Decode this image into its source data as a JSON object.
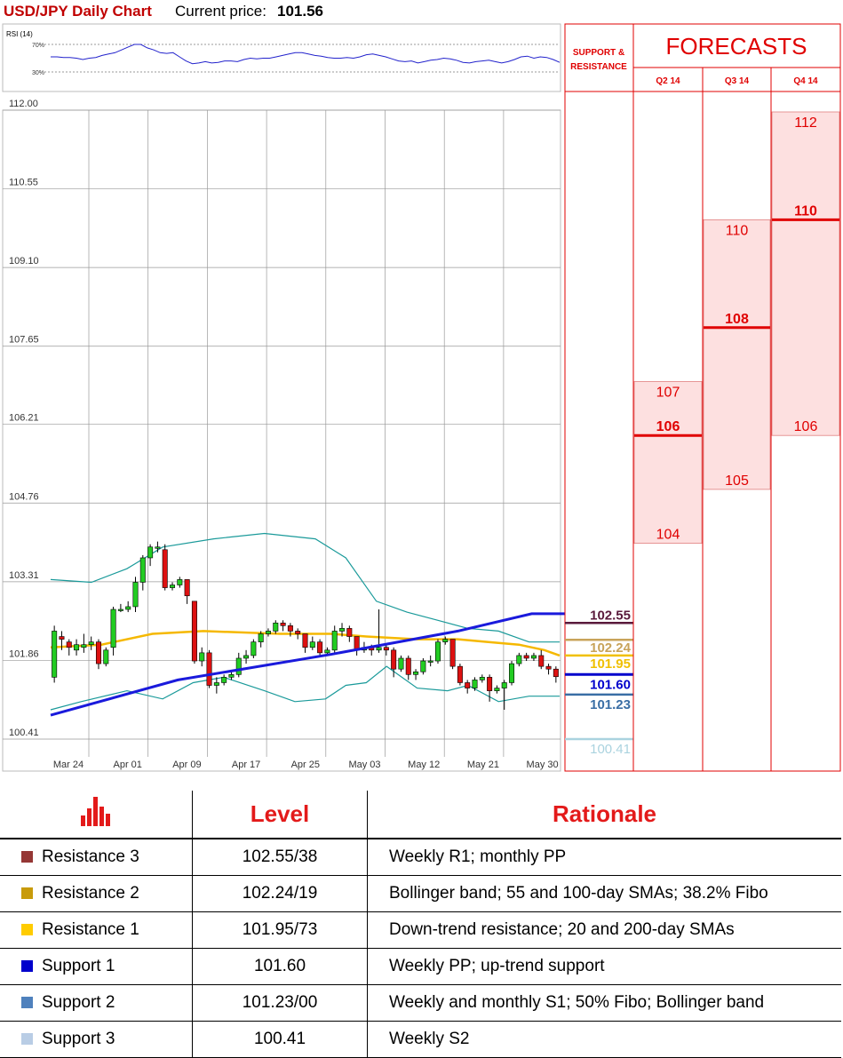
{
  "header": {
    "title": "USD/JPY Daily Chart",
    "price_label": "Current price:",
    "price_value": "101.56"
  },
  "rsi": {
    "label": "RSI (14)",
    "levels": [
      "70%",
      "30%"
    ],
    "values": [
      52,
      52,
      51,
      51,
      50,
      48,
      50,
      51,
      54,
      56,
      58,
      62,
      66,
      70,
      70,
      65,
      62,
      58,
      57,
      58,
      52,
      46,
      42,
      43,
      45,
      43,
      44,
      46,
      46,
      45,
      48,
      50,
      49,
      50,
      50,
      52,
      54,
      56,
      58,
      58,
      56,
      54,
      53,
      51,
      50,
      50,
      51,
      50,
      52,
      55,
      56,
      54,
      52,
      49,
      46,
      45,
      46,
      43,
      45,
      47,
      48,
      50,
      49,
      47,
      44,
      43,
      45,
      46,
      47,
      45,
      43,
      45,
      48,
      52,
      53,
      50,
      52,
      51,
      48,
      44
    ]
  },
  "chart_data": {
    "type": "candlestick",
    "title": "USD/JPY Daily Chart",
    "y_ticks": [
      "112.00",
      "110.55",
      "109.10",
      "107.65",
      "106.21",
      "104.76",
      "103.31",
      "101.86",
      "100.41"
    ],
    "ylim": [
      100.41,
      112.0
    ],
    "x_ticks": [
      "Mar 24",
      "Apr 01",
      "Apr 09",
      "Apr 17",
      "Apr 25",
      "May 03",
      "May 12",
      "May 21",
      "May 30"
    ],
    "grid": true,
    "candles": [
      [
        101.55,
        102.4,
        102.5,
        101.45
      ],
      [
        102.3,
        102.25,
        102.4,
        102.05
      ],
      [
        102.2,
        102.1,
        102.25,
        101.95
      ],
      [
        102.05,
        102.15,
        102.25,
        101.95
      ],
      [
        102.1,
        102.15,
        102.35,
        102.0
      ],
      [
        102.15,
        102.2,
        102.3,
        102.05
      ],
      [
        102.2,
        101.8,
        102.25,
        101.7
      ],
      [
        101.8,
        102.05,
        102.1,
        101.75
      ],
      [
        102.1,
        102.8,
        102.85,
        101.95
      ],
      [
        102.8,
        102.8,
        102.9,
        102.75
      ],
      [
        102.8,
        102.85,
        102.95,
        102.75
      ],
      [
        102.85,
        103.3,
        103.4,
        102.75
      ],
      [
        103.3,
        103.75,
        103.8,
        103.15
      ],
      [
        103.75,
        103.95,
        104.0,
        103.6
      ],
      [
        103.95,
        103.95,
        104.05,
        103.85
      ],
      [
        103.9,
        103.2,
        104.0,
        103.15
      ],
      [
        103.2,
        103.25,
        103.3,
        103.15
      ],
      [
        103.25,
        103.35,
        103.4,
        103.2
      ],
      [
        103.35,
        103.05,
        103.35,
        102.9
      ],
      [
        102.95,
        101.85,
        102.95,
        101.8
      ],
      [
        101.85,
        102.0,
        102.1,
        101.75
      ],
      [
        102.0,
        101.4,
        102.05,
        101.35
      ],
      [
        101.4,
        101.45,
        101.55,
        101.25
      ],
      [
        101.45,
        101.55,
        101.6,
        101.4
      ],
      [
        101.55,
        101.6,
        101.65,
        101.5
      ],
      [
        101.6,
        101.9,
        102.0,
        101.55
      ],
      [
        101.9,
        101.95,
        102.05,
        101.8
      ],
      [
        101.95,
        102.2,
        102.25,
        101.9
      ],
      [
        102.2,
        102.35,
        102.4,
        102.1
      ],
      [
        102.35,
        102.4,
        102.45,
        102.3
      ],
      [
        102.4,
        102.55,
        102.6,
        102.35
      ],
      [
        102.55,
        102.5,
        102.6,
        102.4
      ],
      [
        102.5,
        102.4,
        102.55,
        102.3
      ],
      [
        102.4,
        102.35,
        102.45,
        102.25
      ],
      [
        102.35,
        102.1,
        102.35,
        102.0
      ],
      [
        102.1,
        102.2,
        102.3,
        102.05
      ],
      [
        102.2,
        102.0,
        102.25,
        101.95
      ],
      [
        102.0,
        102.05,
        102.1,
        101.95
      ],
      [
        102.05,
        102.4,
        102.5,
        102.0
      ],
      [
        102.4,
        102.45,
        102.55,
        102.3
      ],
      [
        102.45,
        102.3,
        102.5,
        102.2
      ],
      [
        102.3,
        102.05,
        102.3,
        101.95
      ],
      [
        102.05,
        102.1,
        102.2,
        102.0
      ],
      [
        102.1,
        102.05,
        102.15,
        101.95
      ],
      [
        102.05,
        102.1,
        102.8,
        102.0
      ],
      [
        102.1,
        102.05,
        102.15,
        101.95
      ],
      [
        102.05,
        101.7,
        102.1,
        101.55
      ],
      [
        101.7,
        101.9,
        101.95,
        101.65
      ],
      [
        101.9,
        101.6,
        101.95,
        101.5
      ],
      [
        101.6,
        101.65,
        101.7,
        101.5
      ],
      [
        101.65,
        101.85,
        101.9,
        101.6
      ],
      [
        101.85,
        101.85,
        101.95,
        101.75
      ],
      [
        101.85,
        102.2,
        102.25,
        101.8
      ],
      [
        102.2,
        102.25,
        102.3,
        102.15
      ],
      [
        102.25,
        101.75,
        102.25,
        101.7
      ],
      [
        101.75,
        101.45,
        101.8,
        101.4
      ],
      [
        101.45,
        101.35,
        101.5,
        101.25
      ],
      [
        101.35,
        101.5,
        101.55,
        101.3
      ],
      [
        101.5,
        101.55,
        101.6,
        101.45
      ],
      [
        101.55,
        101.3,
        101.6,
        101.1
      ],
      [
        101.3,
        101.35,
        101.4,
        101.25
      ],
      [
        101.35,
        101.45,
        101.5,
        100.95
      ],
      [
        101.45,
        101.8,
        101.85,
        101.4
      ],
      [
        101.8,
        101.95,
        102.0,
        101.75
      ],
      [
        101.95,
        101.9,
        102.0,
        101.85
      ],
      [
        101.9,
        101.95,
        102.0,
        101.85
      ],
      [
        101.95,
        101.75,
        102.05,
        101.7
      ],
      [
        101.75,
        101.7,
        101.8,
        101.6
      ],
      [
        101.7,
        101.56,
        101.75,
        101.45
      ]
    ],
    "bollinger_upper": [
      [
        0,
        103.35
      ],
      [
        0.08,
        103.3
      ],
      [
        0.15,
        103.55
      ],
      [
        0.22,
        103.95
      ],
      [
        0.32,
        104.1
      ],
      [
        0.42,
        104.2
      ],
      [
        0.52,
        104.1
      ],
      [
        0.58,
        103.75
      ],
      [
        0.64,
        102.95
      ],
      [
        0.7,
        102.75
      ],
      [
        0.76,
        102.6
      ],
      [
        0.82,
        102.45
      ],
      [
        0.88,
        102.4
      ],
      [
        0.94,
        102.2
      ],
      [
        1,
        102.2
      ]
    ],
    "bollinger_lower": [
      [
        0,
        100.95
      ],
      [
        0.06,
        101.1
      ],
      [
        0.15,
        101.3
      ],
      [
        0.22,
        101.15
      ],
      [
        0.28,
        101.45
      ],
      [
        0.34,
        101.55
      ],
      [
        0.42,
        101.3
      ],
      [
        0.48,
        101.1
      ],
      [
        0.54,
        101.15
      ],
      [
        0.58,
        101.4
      ],
      [
        0.62,
        101.45
      ],
      [
        0.66,
        101.75
      ],
      [
        0.72,
        101.35
      ],
      [
        0.78,
        101.3
      ],
      [
        0.82,
        101.4
      ],
      [
        0.88,
        101.1
      ],
      [
        0.94,
        101.2
      ],
      [
        1,
        101.2
      ]
    ],
    "sma_yellow": [
      [
        0,
        102.1
      ],
      [
        0.1,
        102.15
      ],
      [
        0.2,
        102.35
      ],
      [
        0.3,
        102.4
      ],
      [
        0.45,
        102.35
      ],
      [
        0.55,
        102.35
      ],
      [
        0.62,
        102.3
      ],
      [
        0.72,
        102.25
      ],
      [
        0.8,
        102.25
      ],
      [
        0.86,
        102.2
      ],
      [
        0.92,
        102.15
      ],
      [
        0.97,
        102.05
      ],
      [
        1,
        101.95
      ]
    ],
    "uptrend": [
      [
        0,
        100.85
      ],
      [
        0.25,
        101.5
      ],
      [
        0.55,
        101.97
      ],
      [
        0.8,
        102.4
      ],
      [
        0.945,
        102.72
      ],
      [
        1.06,
        102.72
      ]
    ],
    "support_resistance": [
      {
        "value": "102.55",
        "color": "#5a1a3c"
      },
      {
        "value": "102.24",
        "color": "#c8a35a"
      },
      {
        "value": "101.95",
        "color": "#f0c000"
      },
      {
        "value": "101.60",
        "color": "#0000cc"
      },
      {
        "value": "101.23",
        "color": "#3a6ea5"
      },
      {
        "value": "100.41",
        "color": "#aad3df"
      }
    ]
  },
  "forecasts": {
    "title": "FORECASTS",
    "sr_header": "SUPPORT & RESISTANCE",
    "quarters": [
      {
        "label": "Q2 14",
        "high": "107",
        "mid": "106",
        "low": "104",
        "high_v": 107,
        "mid_v": 106,
        "low_v": 104
      },
      {
        "label": "Q3 14",
        "high": "110",
        "mid": "108",
        "low": "105",
        "high_v": 110,
        "mid_v": 108,
        "low_v": 105
      },
      {
        "label": "Q4 14",
        "high": "112",
        "mid": "110",
        "low": "106",
        "high_v": 112,
        "mid_v": 110,
        "low_v": 106
      }
    ]
  },
  "table": {
    "header_level": "Level",
    "header_rationale": "Rationale",
    "rows": [
      {
        "name": "Resistance 3",
        "level": "102.55/38",
        "rationale": "Weekly R1; monthly PP",
        "color": "#953735"
      },
      {
        "name": "Resistance 2",
        "level": "102.24/19",
        "rationale": "Bollinger band; 55 and 100-day SMAs; 38.2% Fibo",
        "color": "#c89b0a"
      },
      {
        "name": "Resistance 1",
        "level": "101.95/73",
        "rationale": "Down-trend resistance; 20 and 200-day SMAs",
        "color": "#ffcc00"
      },
      {
        "name": "Support 1",
        "level": "101.60",
        "rationale": "Weekly PP; up-trend support",
        "color": "#0000cc"
      },
      {
        "name": "Support 2",
        "level": "101.23/00",
        "rationale": "Weekly and monthly S1; 50% Fibo; Bollinger band",
        "color": "#4f81bd"
      },
      {
        "name": "Support 3",
        "level": "100.41",
        "rationale": "Weekly S2",
        "color": "#b9cde5"
      }
    ]
  }
}
